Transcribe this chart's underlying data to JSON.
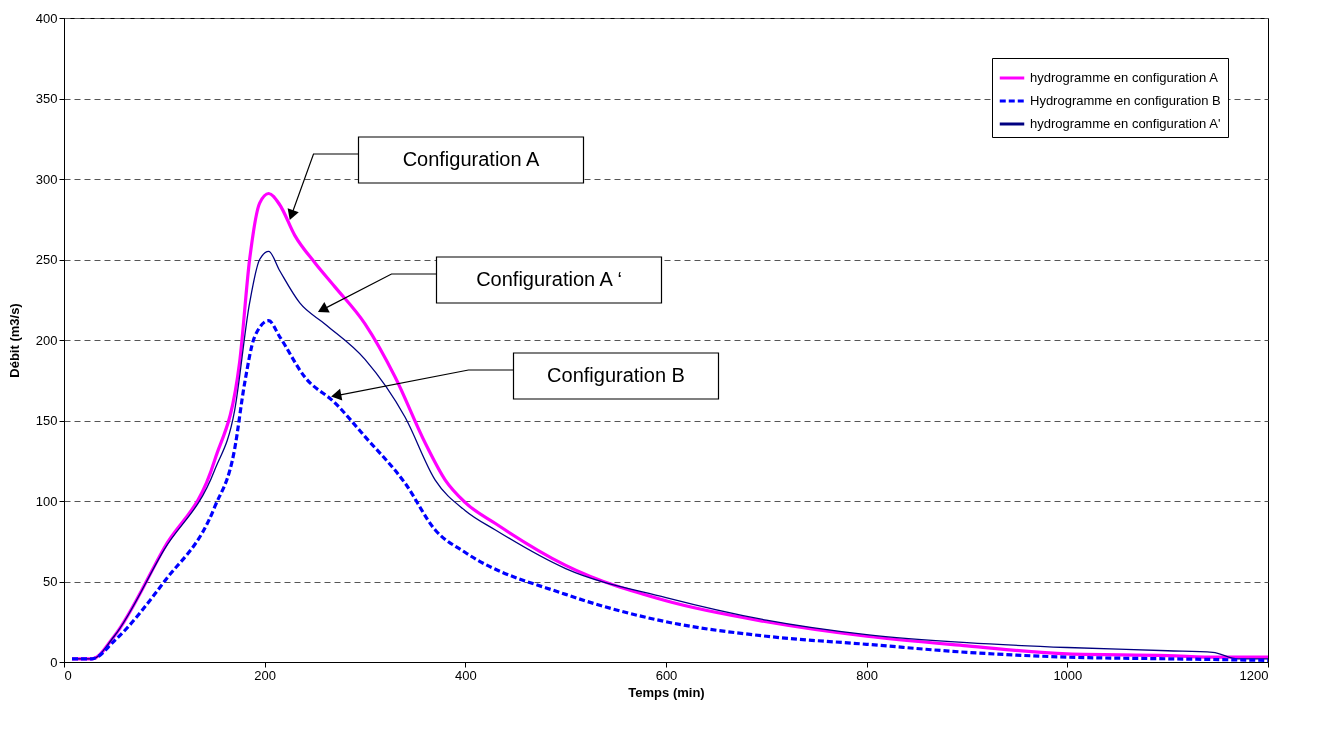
{
  "chart_data": {
    "type": "line",
    "xlabel": "Temps (min)",
    "ylabel": "Débit (m3/s)",
    "xlim": [
      0,
      1200
    ],
    "xticks": [
      0,
      200,
      400,
      600,
      800,
      1000,
      1200
    ],
    "ylim": [
      0,
      400
    ],
    "yticks": [
      0,
      50,
      100,
      150,
      200,
      250,
      300,
      350,
      400
    ],
    "grid": "y",
    "legend": "top right",
    "series": [
      {
        "name": "hydrogramme en configuration A",
        "color": "#ff00ff",
        "line_style": "solid",
        "x": [
          8,
          28,
          50,
          100,
          150,
          175,
          185,
          195,
          204,
          215,
          230,
          250,
          270,
          300,
          330,
          360,
          380,
          400,
          430,
          500,
          600,
          700,
          800,
          900,
          1000,
          1100,
          1150,
          1200
        ],
        "values": [
          2,
          2,
          16,
          71,
          125,
          186,
          250,
          285,
          291,
          284,
          265,
          248,
          233,
          210,
          177,
          136,
          113,
          99,
          86,
          60,
          38,
          25,
          16,
          10,
          5,
          4,
          3,
          3
        ]
      },
      {
        "name": "Hydrogramme en configuration B",
        "color": "#0000ff",
        "line_style": "dashed",
        "x": [
          8,
          28,
          50,
          100,
          150,
          170,
          180,
          190,
          204,
          215,
          240,
          270,
          300,
          340,
          370,
          400,
          500,
          600,
          700,
          800,
          900,
          1000,
          1100,
          1200
        ],
        "values": [
          2,
          2,
          13,
          50,
          96,
          132,
          173,
          202,
          212,
          202,
          177,
          161,
          140,
          111,
          82,
          68,
          42,
          25,
          16,
          11,
          6,
          3,
          2,
          1
        ]
      },
      {
        "name": "hydrogramme en configuration A'",
        "color": "#000080",
        "line_style": "solid",
        "x": [
          8,
          28,
          50,
          100,
          150,
          170,
          185,
          195,
          204,
          215,
          235,
          260,
          300,
          340,
          370,
          400,
          430,
          500,
          600,
          700,
          800,
          900,
          1000,
          1100,
          1145,
          1170,
          1200
        ],
        "values": [
          2,
          2,
          16,
          70,
          119,
          156,
          223,
          250,
          255,
          243,
          223,
          210,
          188,
          152,
          113,
          94,
          82,
          58,
          40,
          26,
          17,
          12,
          9,
          7,
          6,
          2,
          2
        ]
      }
    ],
    "annotations": [
      "Configuration A",
      "Configuration A ‘",
      "Configuration B"
    ]
  }
}
